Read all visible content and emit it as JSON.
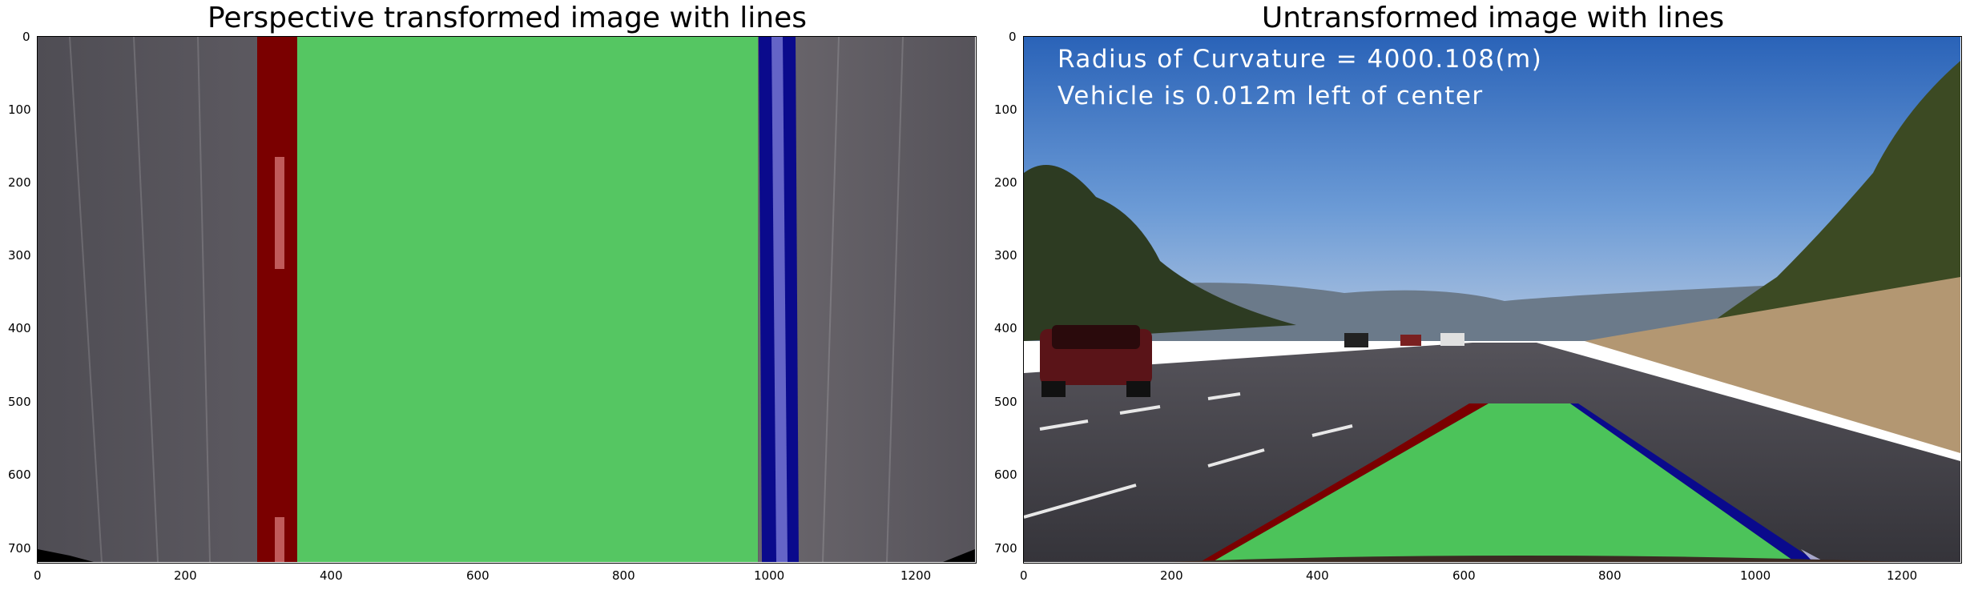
{
  "panels": [
    {
      "title": "Perspective transformed image with lines",
      "x_ticks": [
        "0",
        "200",
        "400",
        "600",
        "800",
        "1000",
        "1200"
      ],
      "y_ticks": [
        "0",
        "100",
        "200",
        "300",
        "400",
        "500",
        "600",
        "700"
      ]
    },
    {
      "title": "Untransformed image with lines",
      "x_ticks": [
        "0",
        "200",
        "400",
        "600",
        "800",
        "1000",
        "1200"
      ],
      "y_ticks": [
        "0",
        "100",
        "200",
        "300",
        "400",
        "500",
        "600",
        "700"
      ],
      "overlay": {
        "radius_text": "Radius of Curvature = 4000.108(m)",
        "vehicle_text": "Vehicle is 0.012m left of center"
      }
    }
  ],
  "colors": {
    "lane_fill": "#4cc35a",
    "left_line": "#7a0000",
    "right_line": "#0a0a8c",
    "road": "#5d5a60",
    "sky": "#3c78c6"
  }
}
